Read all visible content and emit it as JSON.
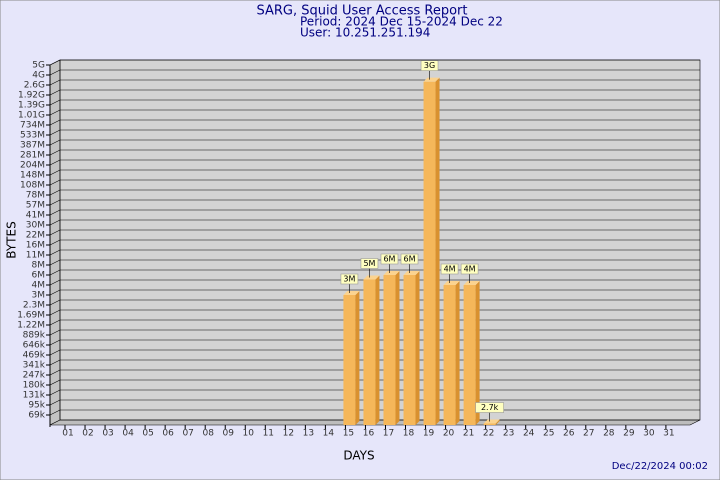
{
  "chart_data": {
    "type": "bar",
    "title": "SARG, Squid User Access Report",
    "subtitle": "Period: 2024 Dec 15-2024 Dec 22",
    "user": "User: 10.251.251.194",
    "xlabel": "DAYS",
    "ylabel": "BYTES",
    "footer": "Dec/22/2024 00:02",
    "categories": [
      "01",
      "02",
      "03",
      "04",
      "05",
      "06",
      "07",
      "08",
      "09",
      "10",
      "11",
      "12",
      "13",
      "14",
      "15",
      "16",
      "17",
      "18",
      "19",
      "20",
      "21",
      "22",
      "23",
      "24",
      "25",
      "26",
      "27",
      "28",
      "29",
      "30",
      "31"
    ],
    "values": [
      null,
      null,
      null,
      null,
      null,
      null,
      null,
      null,
      null,
      null,
      null,
      null,
      null,
      null,
      3000000,
      5000000,
      6000000,
      6000000,
      3000000000,
      4000000,
      4000000,
      2700,
      null,
      null,
      null,
      null,
      null,
      null,
      null,
      null,
      null
    ],
    "value_labels": [
      null,
      null,
      null,
      null,
      null,
      null,
      null,
      null,
      null,
      null,
      null,
      null,
      null,
      null,
      "3M",
      "5M",
      "6M",
      "6M",
      "3G",
      "4M",
      "4M",
      "2.7k",
      null,
      null,
      null,
      null,
      null,
      null,
      null,
      null,
      null
    ],
    "color": "#f5b75a",
    "log_scale": true,
    "grid": true,
    "ylim": [
      50000,
      5000000000
    ],
    "yticks": [
      {
        "value": 69000,
        "label": "69k"
      },
      {
        "value": 95000,
        "label": "95k"
      },
      {
        "value": 131000,
        "label": "131k"
      },
      {
        "value": 180000,
        "label": "180k"
      },
      {
        "value": 247000,
        "label": "247k"
      },
      {
        "value": 341000,
        "label": "341k"
      },
      {
        "value": 469000,
        "label": "469k"
      },
      {
        "value": 646000,
        "label": "646k"
      },
      {
        "value": 889000,
        "label": "889k"
      },
      {
        "value": 1220000,
        "label": "1.22M"
      },
      {
        "value": 1690000,
        "label": "1.69M"
      },
      {
        "value": 2300000,
        "label": "2.3M"
      },
      {
        "value": 3000000,
        "label": "3M"
      },
      {
        "value": 4000000,
        "label": "4M"
      },
      {
        "value": 6000000,
        "label": "6M"
      },
      {
        "value": 8000000,
        "label": "8M"
      },
      {
        "value": 11000000,
        "label": "11M"
      },
      {
        "value": 16000000,
        "label": "16M"
      },
      {
        "value": 22000000,
        "label": "22M"
      },
      {
        "value": 30000000,
        "label": "30M"
      },
      {
        "value": 41000000,
        "label": "41M"
      },
      {
        "value": 57000000,
        "label": "57M"
      },
      {
        "value": 78000000,
        "label": "78M"
      },
      {
        "value": 108000000,
        "label": "108M"
      },
      {
        "value": 148000000,
        "label": "148M"
      },
      {
        "value": 204000000,
        "label": "204M"
      },
      {
        "value": 281000000,
        "label": "281M"
      },
      {
        "value": 387000000,
        "label": "387M"
      },
      {
        "value": 533000000,
        "label": "533M"
      },
      {
        "value": 734000000,
        "label": "734M"
      },
      {
        "value": 1010000000,
        "label": "1.01G"
      },
      {
        "value": 1390000000,
        "label": "1.39G"
      },
      {
        "value": 1920000000,
        "label": "1.92G"
      },
      {
        "value": 2600000000,
        "label": "2.6G"
      },
      {
        "value": 4000000000,
        "label": "4G"
      },
      {
        "value": 5000000000,
        "label": "5G"
      }
    ]
  }
}
